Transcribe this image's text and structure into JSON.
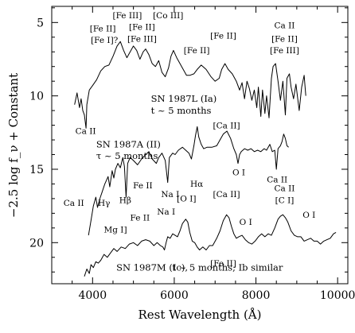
{
  "chart_data": {
    "type": "line",
    "xlabel": "Rest Wavelength (Å)",
    "ylabel": "−2.5 log f_ν + Constant",
    "xlim": [
      3000,
      10250
    ],
    "ylim": [
      22.8,
      3.9
    ],
    "y_inverted": true,
    "x_ticks": [
      4000,
      6000,
      8000,
      10000
    ],
    "y_ticks": [
      5,
      10,
      15,
      20
    ],
    "series": [
      {
        "name": "SN 1987L (Ia)",
        "subtitle": "t ~ 5 months",
        "points": [
          [
            3560,
            10.6
          ],
          [
            3620,
            9.8
          ],
          [
            3680,
            10.8
          ],
          [
            3720,
            10.2
          ],
          [
            3760,
            11.0
          ],
          [
            3800,
            11.3
          ],
          [
            3840,
            12.2
          ],
          [
            3860,
            10.6
          ],
          [
            3920,
            9.6
          ],
          [
            4000,
            9.3
          ],
          [
            4100,
            8.9
          ],
          [
            4200,
            8.3
          ],
          [
            4300,
            8.0
          ],
          [
            4400,
            7.9
          ],
          [
            4500,
            7.3
          ],
          [
            4600,
            6.6
          ],
          [
            4680,
            6.3
          ],
          [
            4760,
            6.9
          ],
          [
            4840,
            7.4
          ],
          [
            4920,
            7.0
          ],
          [
            5000,
            6.6
          ],
          [
            5080,
            6.9
          ],
          [
            5160,
            7.5
          ],
          [
            5240,
            7.0
          ],
          [
            5300,
            6.8
          ],
          [
            5380,
            7.2
          ],
          [
            5460,
            7.8
          ],
          [
            5540,
            8.0
          ],
          [
            5620,
            7.6
          ],
          [
            5700,
            8.4
          ],
          [
            5780,
            8.7
          ],
          [
            5860,
            8.1
          ],
          [
            5920,
            7.3
          ],
          [
            5980,
            6.9
          ],
          [
            6060,
            7.4
          ],
          [
            6140,
            7.8
          ],
          [
            6220,
            8.2
          ],
          [
            6300,
            8.6
          ],
          [
            6380,
            8.6
          ],
          [
            6480,
            8.5
          ],
          [
            6560,
            8.2
          ],
          [
            6660,
            7.9
          ],
          [
            6780,
            8.2
          ],
          [
            6900,
            8.7
          ],
          [
            7000,
            9.0
          ],
          [
            7100,
            8.8
          ],
          [
            7160,
            8.2
          ],
          [
            7240,
            7.8
          ],
          [
            7320,
            8.2
          ],
          [
            7420,
            8.5
          ],
          [
            7520,
            9.0
          ],
          [
            7600,
            9.6
          ],
          [
            7660,
            9.1
          ],
          [
            7720,
            10.2
          ],
          [
            7780,
            9.0
          ],
          [
            7840,
            9.5
          ],
          [
            7900,
            10.3
          ],
          [
            7960,
            9.6
          ],
          [
            8020,
            10.8
          ],
          [
            8060,
            9.4
          ],
          [
            8120,
            11.4
          ],
          [
            8160,
            9.6
          ],
          [
            8220,
            11.2
          ],
          [
            8260,
            10.0
          ],
          [
            8320,
            11.5
          ],
          [
            8380,
            8.8
          ],
          [
            8420,
            8.0
          ],
          [
            8480,
            7.8
          ],
          [
            8540,
            9.0
          ],
          [
            8600,
            10.3
          ],
          [
            8660,
            9.0
          ],
          [
            8720,
            11.3
          ],
          [
            8760,
            8.8
          ],
          [
            8820,
            8.5
          ],
          [
            8860,
            9.4
          ],
          [
            8920,
            10.2
          ],
          [
            8980,
            9.2
          ],
          [
            9060,
            11.0
          ],
          [
            9120,
            9.4
          ],
          [
            9180,
            8.6
          ],
          [
            9220,
            10.0
          ]
        ]
      },
      {
        "name": "SN 1987A (II)",
        "subtitle": "τ ~ 5 months",
        "points": [
          [
            3900,
            19.5
          ],
          [
            3960,
            18.5
          ],
          [
            4020,
            17.5
          ],
          [
            4080,
            16.9
          ],
          [
            4120,
            17.6
          ],
          [
            4180,
            17.0
          ],
          [
            4240,
            16.5
          ],
          [
            4300,
            16.0
          ],
          [
            4380,
            15.5
          ],
          [
            4420,
            16.2
          ],
          [
            4480,
            15.1
          ],
          [
            4520,
            15.6
          ],
          [
            4560,
            15.0
          ],
          [
            4620,
            14.6
          ],
          [
            4680,
            14.9
          ],
          [
            4740,
            14.2
          ],
          [
            4780,
            14.8
          ],
          [
            4820,
            16.9
          ],
          [
            4860,
            14.6
          ],
          [
            4920,
            14.2
          ],
          [
            5000,
            14.4
          ],
          [
            5100,
            14.7
          ],
          [
            5200,
            14.3
          ],
          [
            5300,
            14.0
          ],
          [
            5380,
            13.8
          ],
          [
            5460,
            14.3
          ],
          [
            5560,
            14.6
          ],
          [
            5620,
            14.2
          ],
          [
            5700,
            13.9
          ],
          [
            5780,
            14.4
          ],
          [
            5840,
            15.9
          ],
          [
            5880,
            14.2
          ],
          [
            5960,
            13.9
          ],
          [
            6020,
            14.0
          ],
          [
            6100,
            13.7
          ],
          [
            6200,
            13.5
          ],
          [
            6280,
            13.7
          ],
          [
            6360,
            13.9
          ],
          [
            6420,
            14.3
          ],
          [
            6480,
            13.4
          ],
          [
            6520,
            12.7
          ],
          [
            6563,
            12.1
          ],
          [
            6600,
            12.8
          ],
          [
            6660,
            13.3
          ],
          [
            6720,
            13.6
          ],
          [
            6800,
            13.5
          ],
          [
            6920,
            13.5
          ],
          [
            7040,
            13.4
          ],
          [
            7120,
            13.0
          ],
          [
            7200,
            12.6
          ],
          [
            7290,
            12.4
          ],
          [
            7380,
            12.9
          ],
          [
            7460,
            13.6
          ],
          [
            7520,
            14.0
          ],
          [
            7560,
            14.6
          ],
          [
            7600,
            14.0
          ],
          [
            7640,
            13.8
          ],
          [
            7720,
            13.6
          ],
          [
            7800,
            13.7
          ],
          [
            7880,
            13.6
          ],
          [
            7960,
            13.8
          ],
          [
            8040,
            13.7
          ],
          [
            8120,
            13.8
          ],
          [
            8200,
            13.6
          ],
          [
            8260,
            13.7
          ],
          [
            8340,
            13.3
          ],
          [
            8400,
            13.8
          ],
          [
            8460,
            13.7
          ],
          [
            8500,
            15.0
          ],
          [
            8540,
            13.6
          ],
          [
            8600,
            13.4
          ],
          [
            8640,
            13.1
          ],
          [
            8680,
            12.6
          ],
          [
            8720,
            12.9
          ],
          [
            8760,
            13.4
          ],
          [
            8800,
            13.5
          ]
        ]
      },
      {
        "name": "SN 1987M (Ic)",
        "subtitle": "t ~ 5 months; Ib similar",
        "points": [
          [
            3800,
            22.3
          ],
          [
            3860,
            21.8
          ],
          [
            3920,
            22.1
          ],
          [
            3960,
            21.5
          ],
          [
            4020,
            21.7
          ],
          [
            4080,
            21.3
          ],
          [
            4140,
            21.4
          ],
          [
            4200,
            21.2
          ],
          [
            4280,
            20.8
          ],
          [
            4360,
            21.0
          ],
          [
            4440,
            20.7
          ],
          [
            4520,
            20.4
          ],
          [
            4600,
            20.6
          ],
          [
            4700,
            20.3
          ],
          [
            4800,
            20.4
          ],
          [
            4900,
            20.1
          ],
          [
            5000,
            20.0
          ],
          [
            5100,
            20.2
          ],
          [
            5200,
            19.9
          ],
          [
            5300,
            19.8
          ],
          [
            5400,
            19.9
          ],
          [
            5500,
            20.2
          ],
          [
            5580,
            20.0
          ],
          [
            5660,
            20.2
          ],
          [
            5720,
            20.3
          ],
          [
            5760,
            20.5
          ],
          [
            5800,
            20.0
          ],
          [
            5840,
            19.6
          ],
          [
            5900,
            19.7
          ],
          [
            5960,
            19.4
          ],
          [
            6020,
            19.5
          ],
          [
            6080,
            19.6
          ],
          [
            6140,
            19.2
          ],
          [
            6200,
            18.7
          ],
          [
            6280,
            18.4
          ],
          [
            6330,
            18.6
          ],
          [
            6380,
            19.3
          ],
          [
            6440,
            19.9
          ],
          [
            6500,
            20.0
          ],
          [
            6560,
            20.3
          ],
          [
            6620,
            20.5
          ],
          [
            6700,
            20.3
          ],
          [
            6780,
            20.5
          ],
          [
            6860,
            20.2
          ],
          [
            6940,
            20.2
          ],
          [
            7040,
            19.7
          ],
          [
            7120,
            19.2
          ],
          [
            7200,
            18.5
          ],
          [
            7280,
            18.1
          ],
          [
            7340,
            18.3
          ],
          [
            7400,
            18.9
          ],
          [
            7460,
            19.4
          ],
          [
            7520,
            19.7
          ],
          [
            7580,
            19.6
          ],
          [
            7660,
            19.5
          ],
          [
            7740,
            19.8
          ],
          [
            7820,
            20.0
          ],
          [
            7900,
            20.1
          ],
          [
            7980,
            19.9
          ],
          [
            8060,
            19.6
          ],
          [
            8140,
            19.4
          ],
          [
            8220,
            19.6
          ],
          [
            8300,
            19.4
          ],
          [
            8380,
            19.5
          ],
          [
            8460,
            19.0
          ],
          [
            8540,
            18.4
          ],
          [
            8600,
            18.2
          ],
          [
            8660,
            18.1
          ],
          [
            8720,
            18.3
          ],
          [
            8780,
            18.6
          ],
          [
            8860,
            19.2
          ],
          [
            8940,
            19.5
          ],
          [
            9020,
            19.6
          ],
          [
            9100,
            19.6
          ],
          [
            9180,
            19.9
          ],
          [
            9260,
            19.8
          ],
          [
            9340,
            19.7
          ],
          [
            9420,
            19.9
          ],
          [
            9500,
            19.9
          ],
          [
            9580,
            20.1
          ],
          [
            9660,
            19.9
          ],
          [
            9740,
            19.8
          ],
          [
            9820,
            19.7
          ],
          [
            9900,
            19.4
          ],
          [
            9960,
            19.3
          ]
        ]
      }
    ],
    "annotations": [
      {
        "text": "[Fe III]",
        "x": 4850,
        "y": 4.7
      },
      {
        "text": "[Co III]",
        "x": 5850,
        "y": 4.7
      },
      {
        "text": "[Fe II]",
        "x": 4250,
        "y": 5.6
      },
      {
        "text": "[Fe I]?",
        "x": 4290,
        "y": 6.4
      },
      {
        "text": "[Fe II]",
        "x": 5210,
        "y": 5.5
      },
      {
        "text": "[Fe III]",
        "x": 5210,
        "y": 6.3
      },
      {
        "text": "[Fe II]",
        "x": 7200,
        "y": 6.1
      },
      {
        "text": "[Fe II]",
        "x": 6550,
        "y": 7.1
      },
      {
        "text": "Ca II",
        "x": 8700,
        "y": 5.4
      },
      {
        "text": "[Fe II]",
        "x": 8700,
        "y": 6.3
      },
      {
        "text": "[Fe III]",
        "x": 8700,
        "y": 7.1
      },
      {
        "text": "Ca II",
        "x": 3830,
        "y": 12.6
      },
      {
        "text": "[Ca II]",
        "x": 7280,
        "y": 12.2
      },
      {
        "text": "Fe II",
        "x": 5230,
        "y": 16.3
      },
      {
        "text": "Na I",
        "x": 5900,
        "y": 16.9
      },
      {
        "text": "Hα",
        "x": 6550,
        "y": 16.2
      },
      {
        "text": "O I",
        "x": 7580,
        "y": 15.4
      },
      {
        "text": "Ca II",
        "x": 8520,
        "y": 15.9
      },
      {
        "text": "Ca II",
        "x": 3540,
        "y": 17.5
      },
      {
        "text": "Hγ",
        "x": 4280,
        "y": 17.5
      },
      {
        "text": "Hβ",
        "x": 4800,
        "y": 17.3
      },
      {
        "text": "Mg I]",
        "x": 4560,
        "y": 19.3
      },
      {
        "text": "Fe II",
        "x": 5160,
        "y": 18.5
      },
      {
        "text": "Na I",
        "x": 5800,
        "y": 18.1
      },
      {
        "text": "[O I]",
        "x": 6300,
        "y": 17.2
      },
      {
        "text": "[Ca II]",
        "x": 7280,
        "y": 16.9
      },
      {
        "text": "O I",
        "x": 7750,
        "y": 18.8
      },
      {
        "text": "Ca II",
        "x": 8700,
        "y": 16.5
      },
      {
        "text": "[C I]",
        "x": 8700,
        "y": 17.3
      },
      {
        "text": "O I",
        "x": 9300,
        "y": 18.3
      },
      {
        "text": "[Fe II]",
        "x": 7200,
        "y": 21.6
      }
    ],
    "series_labels": [
      {
        "series": 0,
        "x": 5430,
        "y": 10.4,
        "x2": 5430,
        "y2": 11.2
      },
      {
        "series": 1,
        "x": 4090,
        "y": 13.5,
        "x2": 4090,
        "y2": 14.3
      },
      {
        "series": 2,
        "x": 4580,
        "y": 21.9,
        "x2": 5950,
        "y2": 21.9
      }
    ]
  }
}
